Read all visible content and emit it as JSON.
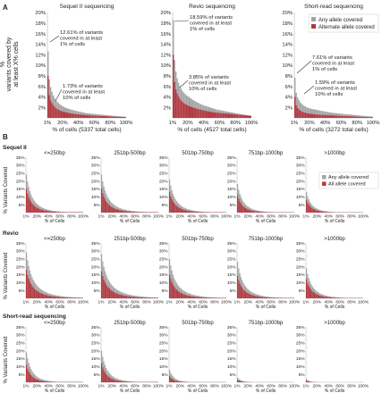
{
  "panel_a": {
    "label": "A",
    "ylabel": "% variants covered by at least X% cells",
    "yticks": [
      "2%",
      "4%",
      "6%",
      "8%",
      "10%",
      "12%",
      "14%",
      "16%",
      "18%",
      "20%"
    ],
    "xticks": [
      "1%",
      "20%",
      "40%",
      "60%",
      "80%",
      "100%"
    ],
    "legend": [
      "Any allele covered",
      "Alternate allele covered"
    ]
  },
  "panel_b": {
    "label": "B",
    "ylabel": "% Variants Covered",
    "xlabel": "% of Cells",
    "yticks": [
      "5%",
      "10%",
      "15%",
      "20%",
      "25%",
      "30%",
      "35%"
    ],
    "xticks": [
      "1%",
      "20%",
      "40%",
      "60%",
      "80%",
      "100%"
    ],
    "columns": [
      "<=250bp",
      "251bp-500bp",
      "501bp-750bp",
      "751bp-1000bp",
      ">1000bp"
    ],
    "rows": [
      "Sequel II",
      "Revio",
      "Short-read sequencing"
    ],
    "legend": [
      "Any allele covered",
      "All allele covered"
    ]
  },
  "colors": {
    "any": "#a3a3a3",
    "alt": "#b5373f",
    "axis": "#bdbdbd",
    "text": "#222222"
  },
  "chart_data": [
    {
      "type": "bar",
      "panel": "A",
      "title": "Sequel II sequencing",
      "xlabel": "% of cells (5337 total cells)",
      "ylabel": "% variants covered by at least X% cells",
      "x_range": [
        1,
        100
      ],
      "ylim": [
        0,
        20
      ],
      "series": [
        {
          "name": "Any allele covered",
          "values": [
            12.61,
            8.0,
            6.0,
            4.6,
            3.6,
            2.9,
            2.4,
            2.0,
            1.73,
            1.5,
            1.3,
            1.1,
            0.9,
            0.8,
            0.7,
            0.6,
            0.5,
            0.4,
            0.3,
            0.2
          ]
        },
        {
          "name": "Alternate allele covered",
          "values": [
            8.0,
            4.8,
            3.4,
            2.6,
            2.0,
            1.6,
            1.3,
            1.1,
            0.95,
            0.8,
            0.7,
            0.6,
            0.5,
            0.45,
            0.4,
            0.35,
            0.3,
            0.25,
            0.2,
            0.15
          ]
        }
      ],
      "annotations": [
        "12.61% of variants covered in at least 1% of cells",
        "1.73% of variants covered in at least 10% of cells"
      ]
    },
    {
      "type": "bar",
      "panel": "A",
      "title": "Revio sequencing",
      "xlabel": "% of cells (4527 total cells)",
      "ylabel": "% variants covered by at least X% cells",
      "x_range": [
        1,
        100
      ],
      "ylim": [
        0,
        20
      ],
      "series": [
        {
          "name": "Any allele covered",
          "values": [
            18.59,
            12.0,
            9.0,
            7.0,
            5.8,
            4.9,
            4.3,
            3.85,
            3.3,
            2.9,
            2.5,
            2.2,
            1.9,
            1.6,
            1.4,
            1.2,
            1.0,
            0.8,
            0.6,
            0.4
          ]
        },
        {
          "name": "Alternate allele covered",
          "values": [
            12.0,
            7.5,
            5.5,
            4.3,
            3.5,
            2.9,
            2.5,
            2.2,
            1.9,
            1.7,
            1.5,
            1.3,
            1.1,
            1.0,
            0.9,
            0.8,
            0.7,
            0.6,
            0.5,
            0.4
          ]
        }
      ],
      "annotations": [
        "18.59% of variants covered in at least 1% of cells",
        "3.85% of variants covered in at least 10% of cells"
      ]
    },
    {
      "type": "bar",
      "panel": "A",
      "title": "Short-read sequencing",
      "xlabel": "% of cells (3272 total cells)",
      "ylabel": "% variants covered by at least X% cells",
      "x_range": [
        1,
        100
      ],
      "ylim": [
        0,
        20
      ],
      "series": [
        {
          "name": "Any allele covered",
          "values": [
            7.61,
            5.2,
            4.0,
            3.2,
            2.6,
            2.2,
            1.9,
            1.7,
            1.59,
            1.4,
            1.25,
            1.1,
            0.95,
            0.85,
            0.75,
            0.65,
            0.55,
            0.45,
            0.35,
            0.25
          ]
        },
        {
          "name": "Alternate allele covered",
          "values": [
            4.0,
            2.6,
            1.9,
            1.5,
            1.2,
            1.0,
            0.85,
            0.75,
            0.65,
            0.6,
            0.55,
            0.5,
            0.45,
            0.4,
            0.35,
            0.3,
            0.25,
            0.2,
            0.15,
            0.1
          ]
        }
      ],
      "annotations": [
        "7.61% of variants covered in at least 1% of cells",
        "1.59% of variants covered in at least 10% of cells"
      ]
    },
    {
      "type": "bar",
      "panel": "B",
      "x_range": [
        1,
        100
      ],
      "ylim": [
        0,
        35
      ],
      "series_names": [
        "Any allele covered",
        "All allele covered"
      ],
      "row_peaks_any": [
        [
          24,
          24,
          21,
          18,
          13
        ],
        [
          29,
          28,
          25,
          23,
          19
        ],
        [
          19,
          20,
          8,
          3,
          2
        ]
      ],
      "row_peaks_all": [
        [
          15,
          15,
          13,
          11,
          8
        ],
        [
          18,
          17,
          15,
          14,
          12
        ],
        [
          11,
          12,
          4,
          1.5,
          1
        ]
      ],
      "row_decay": [
        [
          0.03,
          0.026,
          0.03,
          0.035,
          0.04
        ],
        [
          0.02,
          0.018,
          0.022,
          0.026,
          0.03
        ],
        [
          0.04,
          0.036,
          0.06,
          0.08,
          0.1
        ]
      ]
    }
  ]
}
